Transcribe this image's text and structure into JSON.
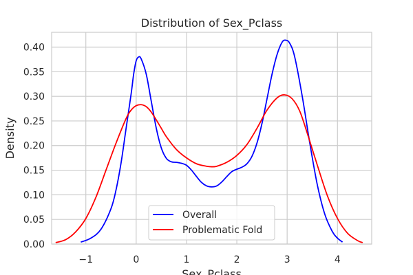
{
  "chart_data": {
    "type": "line",
    "title": "Distribution of Sex_Pclass",
    "xlabel": "Sex_Pclass",
    "ylabel": "Density",
    "xlim": [
      -1.68,
      4.68
    ],
    "ylim": [
      0.0,
      0.43
    ],
    "xticks": [
      -1,
      0,
      1,
      2,
      3,
      4
    ],
    "xtick_labels": [
      "−1",
      "0",
      "1",
      "2",
      "3",
      "4"
    ],
    "yticks": [
      0.0,
      0.05,
      0.1,
      0.15,
      0.2,
      0.25,
      0.3,
      0.35,
      0.4
    ],
    "ytick_labels": [
      "0.00",
      "0.05",
      "0.10",
      "0.15",
      "0.20",
      "0.25",
      "0.30",
      "0.35",
      "0.40"
    ],
    "grid": true,
    "legend_position": "bottom-center",
    "series": [
      {
        "name": "Overall",
        "color": "#0000ff",
        "points": [
          [
            -1.1,
            0.004
          ],
          [
            -0.9,
            0.012
          ],
          [
            -0.7,
            0.03
          ],
          [
            -0.5,
            0.072
          ],
          [
            -0.4,
            0.11
          ],
          [
            -0.3,
            0.165
          ],
          [
            -0.2,
            0.235
          ],
          [
            -0.1,
            0.305
          ],
          [
            -0.05,
            0.345
          ],
          [
            0.0,
            0.372
          ],
          [
            0.05,
            0.38
          ],
          [
            0.1,
            0.376
          ],
          [
            0.2,
            0.345
          ],
          [
            0.3,
            0.29
          ],
          [
            0.4,
            0.235
          ],
          [
            0.5,
            0.195
          ],
          [
            0.6,
            0.174
          ],
          [
            0.7,
            0.167
          ],
          [
            0.8,
            0.166
          ],
          [
            0.9,
            0.164
          ],
          [
            1.0,
            0.16
          ],
          [
            1.1,
            0.15
          ],
          [
            1.2,
            0.137
          ],
          [
            1.3,
            0.125
          ],
          [
            1.4,
            0.118
          ],
          [
            1.5,
            0.116
          ],
          [
            1.6,
            0.118
          ],
          [
            1.7,
            0.126
          ],
          [
            1.8,
            0.137
          ],
          [
            1.9,
            0.147
          ],
          [
            2.0,
            0.152
          ],
          [
            2.1,
            0.156
          ],
          [
            2.2,
            0.163
          ],
          [
            2.3,
            0.178
          ],
          [
            2.4,
            0.205
          ],
          [
            2.5,
            0.245
          ],
          [
            2.6,
            0.295
          ],
          [
            2.7,
            0.345
          ],
          [
            2.8,
            0.385
          ],
          [
            2.9,
            0.41
          ],
          [
            2.97,
            0.414
          ],
          [
            3.05,
            0.408
          ],
          [
            3.15,
            0.38
          ],
          [
            3.3,
            0.3
          ],
          [
            3.45,
            0.205
          ],
          [
            3.6,
            0.12
          ],
          [
            3.75,
            0.06
          ],
          [
            3.9,
            0.025
          ],
          [
            4.0,
            0.012
          ],
          [
            4.1,
            0.004
          ]
        ]
      },
      {
        "name": "Problematic Fold",
        "color": "#ff0000",
        "points": [
          [
            -1.6,
            0.003
          ],
          [
            -1.4,
            0.009
          ],
          [
            -1.2,
            0.025
          ],
          [
            -1.0,
            0.052
          ],
          [
            -0.8,
            0.095
          ],
          [
            -0.6,
            0.15
          ],
          [
            -0.4,
            0.205
          ],
          [
            -0.2,
            0.255
          ],
          [
            -0.1,
            0.272
          ],
          [
            0.0,
            0.281
          ],
          [
            0.1,
            0.283
          ],
          [
            0.2,
            0.279
          ],
          [
            0.3,
            0.268
          ],
          [
            0.4,
            0.252
          ],
          [
            0.5,
            0.235
          ],
          [
            0.6,
            0.218
          ],
          [
            0.8,
            0.192
          ],
          [
            1.0,
            0.175
          ],
          [
            1.2,
            0.163
          ],
          [
            1.4,
            0.158
          ],
          [
            1.5,
            0.157
          ],
          [
            1.6,
            0.158
          ],
          [
            1.8,
            0.166
          ],
          [
            2.0,
            0.18
          ],
          [
            2.2,
            0.202
          ],
          [
            2.4,
            0.235
          ],
          [
            2.6,
            0.272
          ],
          [
            2.8,
            0.297
          ],
          [
            2.95,
            0.303
          ],
          [
            3.1,
            0.295
          ],
          [
            3.25,
            0.27
          ],
          [
            3.4,
            0.225
          ],
          [
            3.6,
            0.16
          ],
          [
            3.8,
            0.098
          ],
          [
            4.0,
            0.052
          ],
          [
            4.2,
            0.022
          ],
          [
            4.4,
            0.007
          ],
          [
            4.5,
            0.003
          ]
        ]
      }
    ]
  }
}
